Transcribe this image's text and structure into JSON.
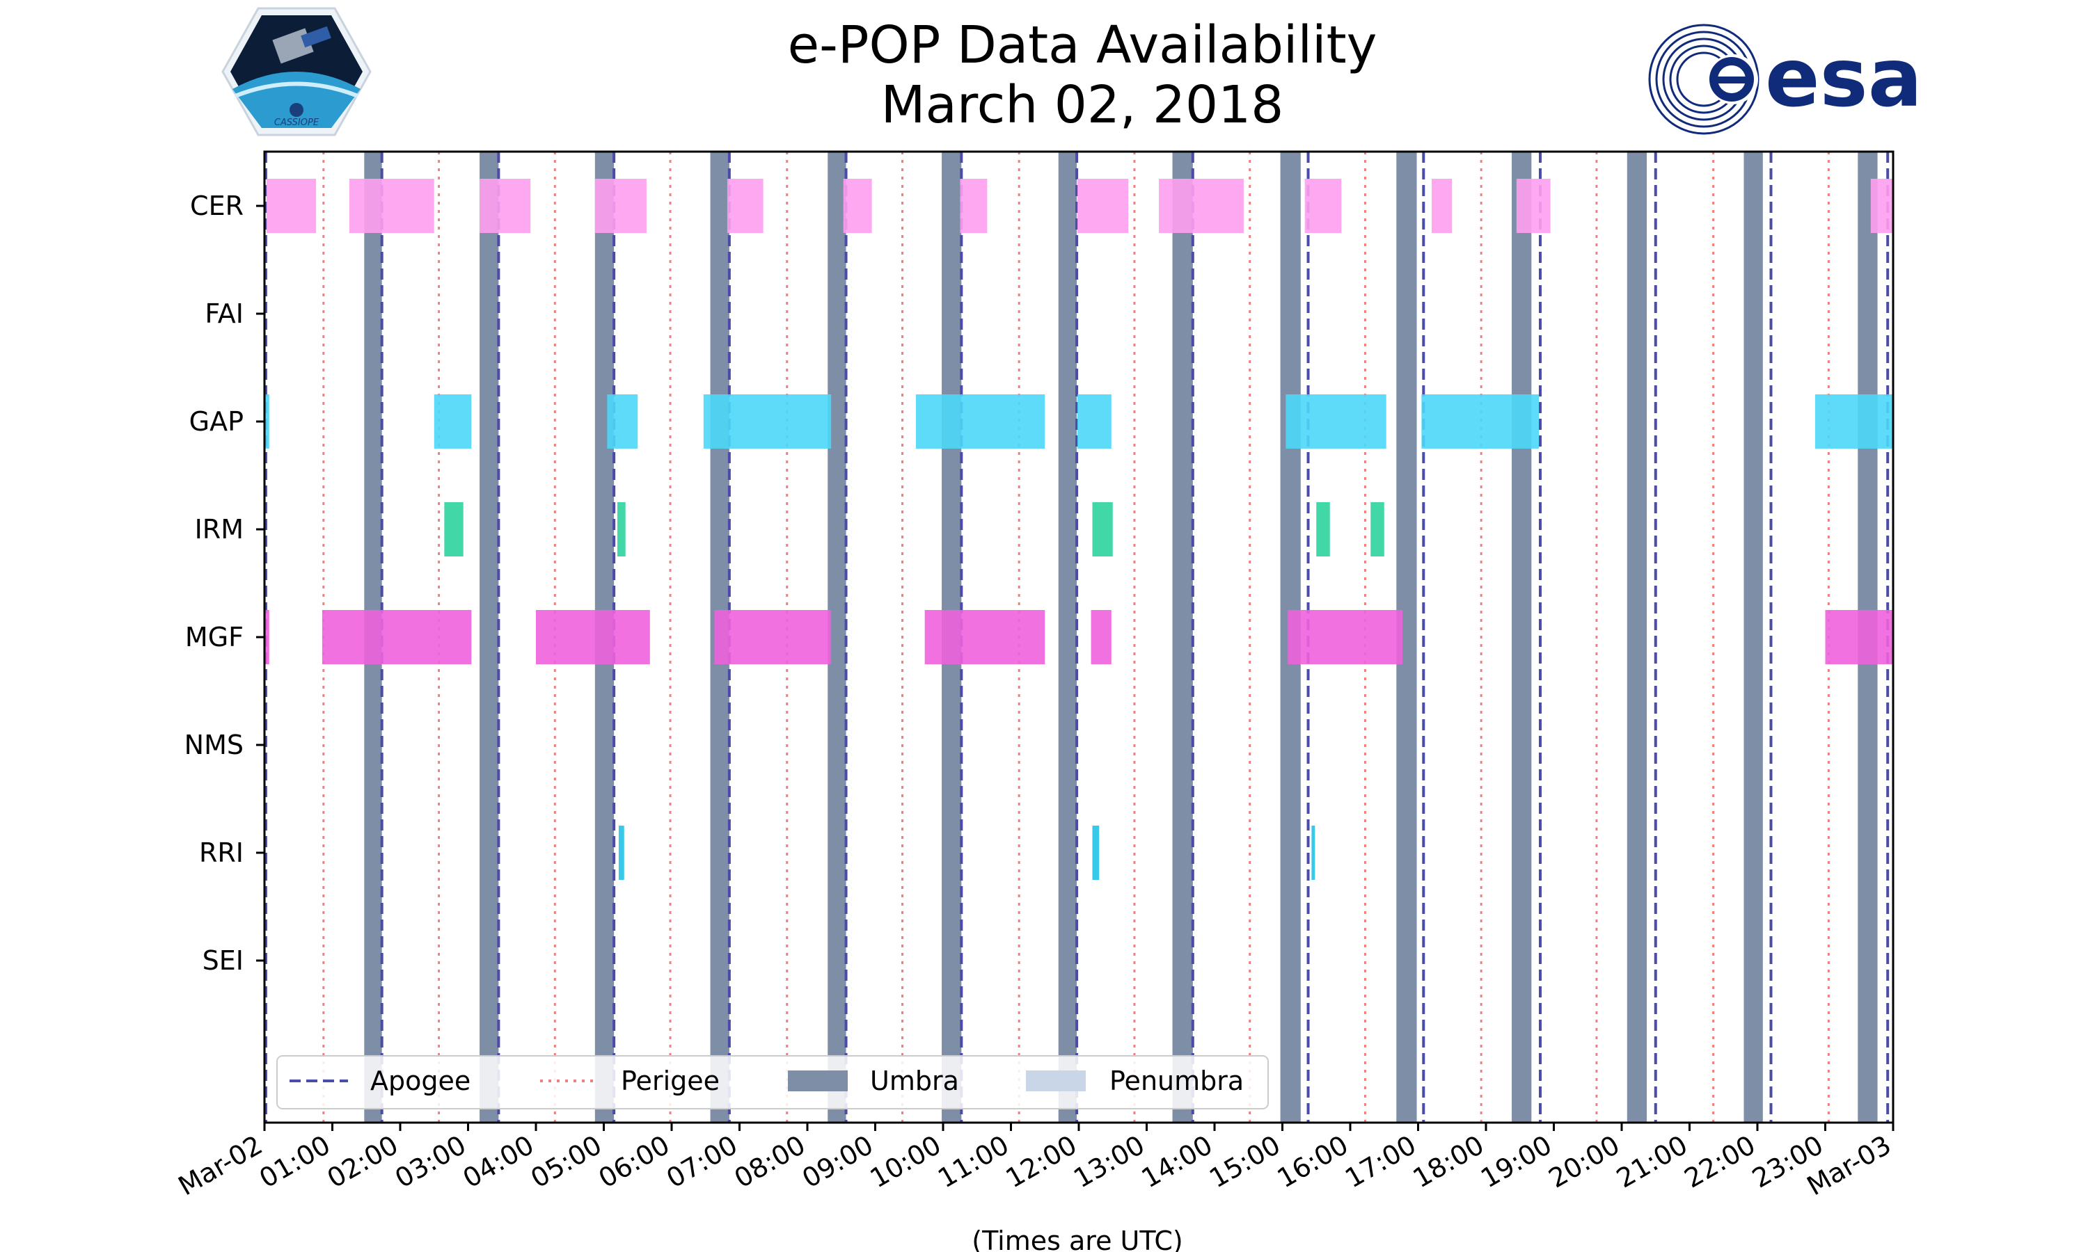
{
  "title": {
    "line1": "e-POP Data Availability",
    "line2": "March 02, 2018"
  },
  "logos": {
    "left": {
      "icon": "cassiope-mission-logo",
      "text": "CASSIOPE"
    },
    "right": {
      "icon": "esa-logo",
      "text": "esa"
    }
  },
  "chart_data": {
    "type": "timeline",
    "xlabel": "(Times are UTC)",
    "xlim_hours": [
      0,
      24
    ],
    "x_tick_labels": [
      "Mar-02",
      "01:00",
      "02:00",
      "03:00",
      "04:00",
      "05:00",
      "06:00",
      "07:00",
      "08:00",
      "09:00",
      "10:00",
      "11:00",
      "12:00",
      "13:00",
      "14:00",
      "15:00",
      "16:00",
      "17:00",
      "18:00",
      "19:00",
      "20:00",
      "21:00",
      "22:00",
      "23:00",
      "Mar-03"
    ],
    "instruments": [
      "CER",
      "FAI",
      "GAP",
      "IRM",
      "MGF",
      "NMS",
      "RRI",
      "SEI"
    ],
    "instrument_colors": {
      "CER": "#fe9ff0",
      "FAI": "#cccccc",
      "GAP": "#4dd7f7",
      "IRM": "#2ed39c",
      "MGF": "#ee62dc",
      "NMS": "#cccccc",
      "RRI": "#22c2e8",
      "SEI": "#cccccc"
    },
    "availability_hours": {
      "CER": [
        [
          0.03,
          0.76
        ],
        [
          1.25,
          2.5
        ],
        [
          3.17,
          3.92
        ],
        [
          4.87,
          5.63
        ],
        [
          6.82,
          7.35
        ],
        [
          8.53,
          8.95
        ],
        [
          10.25,
          10.65
        ],
        [
          11.98,
          12.73
        ],
        [
          13.18,
          14.43
        ],
        [
          15.33,
          15.87
        ],
        [
          17.2,
          17.5
        ],
        [
          18.45,
          18.95
        ],
        [
          23.67,
          24.0
        ]
      ],
      "FAI": [],
      "GAP": [
        [
          0.0,
          0.07
        ],
        [
          2.5,
          3.05
        ],
        [
          5.05,
          5.5
        ],
        [
          6.47,
          8.35
        ],
        [
          9.6,
          11.5
        ],
        [
          11.98,
          12.48
        ],
        [
          15.05,
          16.53
        ],
        [
          17.05,
          18.78
        ],
        [
          22.85,
          24.0
        ]
      ],
      "IRM": [
        [
          2.65,
          2.93
        ],
        [
          5.2,
          5.32
        ],
        [
          12.2,
          12.5
        ],
        [
          15.5,
          15.7
        ],
        [
          16.3,
          16.5
        ]
      ],
      "MGF": [
        [
          0.0,
          0.07
        ],
        [
          0.85,
          3.05
        ],
        [
          4.0,
          5.68
        ],
        [
          6.63,
          8.35
        ],
        [
          9.73,
          11.5
        ],
        [
          12.18,
          12.48
        ],
        [
          15.08,
          16.77
        ],
        [
          23.0,
          24.0
        ]
      ],
      "NMS": [],
      "RRI": [
        [
          5.22,
          5.3
        ],
        [
          12.2,
          12.3
        ],
        [
          15.43,
          15.48
        ]
      ],
      "SEI": []
    },
    "apogee_hours": [
      0.02,
      1.73,
      3.45,
      5.15,
      6.85,
      8.57,
      10.27,
      11.97,
      13.68,
      15.38,
      17.08,
      18.8,
      20.5,
      22.2,
      23.92
    ],
    "perigee_hours": [
      0.87,
      2.57,
      4.28,
      5.98,
      7.7,
      9.4,
      11.12,
      12.82,
      14.52,
      16.22,
      17.93,
      19.63,
      21.35,
      23.05
    ],
    "umbra_hours": [
      [
        1.47,
        1.73
      ],
      [
        3.17,
        3.45
      ],
      [
        4.87,
        5.15
      ],
      [
        6.57,
        6.85
      ],
      [
        8.3,
        8.57
      ],
      [
        9.98,
        10.27
      ],
      [
        11.7,
        11.97
      ],
      [
        13.38,
        13.68
      ],
      [
        14.97,
        15.27
      ],
      [
        16.68,
        16.98
      ],
      [
        18.38,
        18.67
      ],
      [
        20.08,
        20.37
      ],
      [
        21.8,
        22.08
      ],
      [
        23.48,
        23.77
      ]
    ],
    "legend": {
      "position": "lower-center",
      "items": [
        {
          "label": "Apogee",
          "style": "dashed",
          "color": "#4b4ba8"
        },
        {
          "label": "Perigee",
          "style": "dotted",
          "color": "#f08080"
        },
        {
          "label": "Umbra",
          "style": "fill",
          "color": "#7d8ea6"
        },
        {
          "label": "Penumbra",
          "style": "fill",
          "color": "#c8d6e8"
        }
      ]
    }
  }
}
